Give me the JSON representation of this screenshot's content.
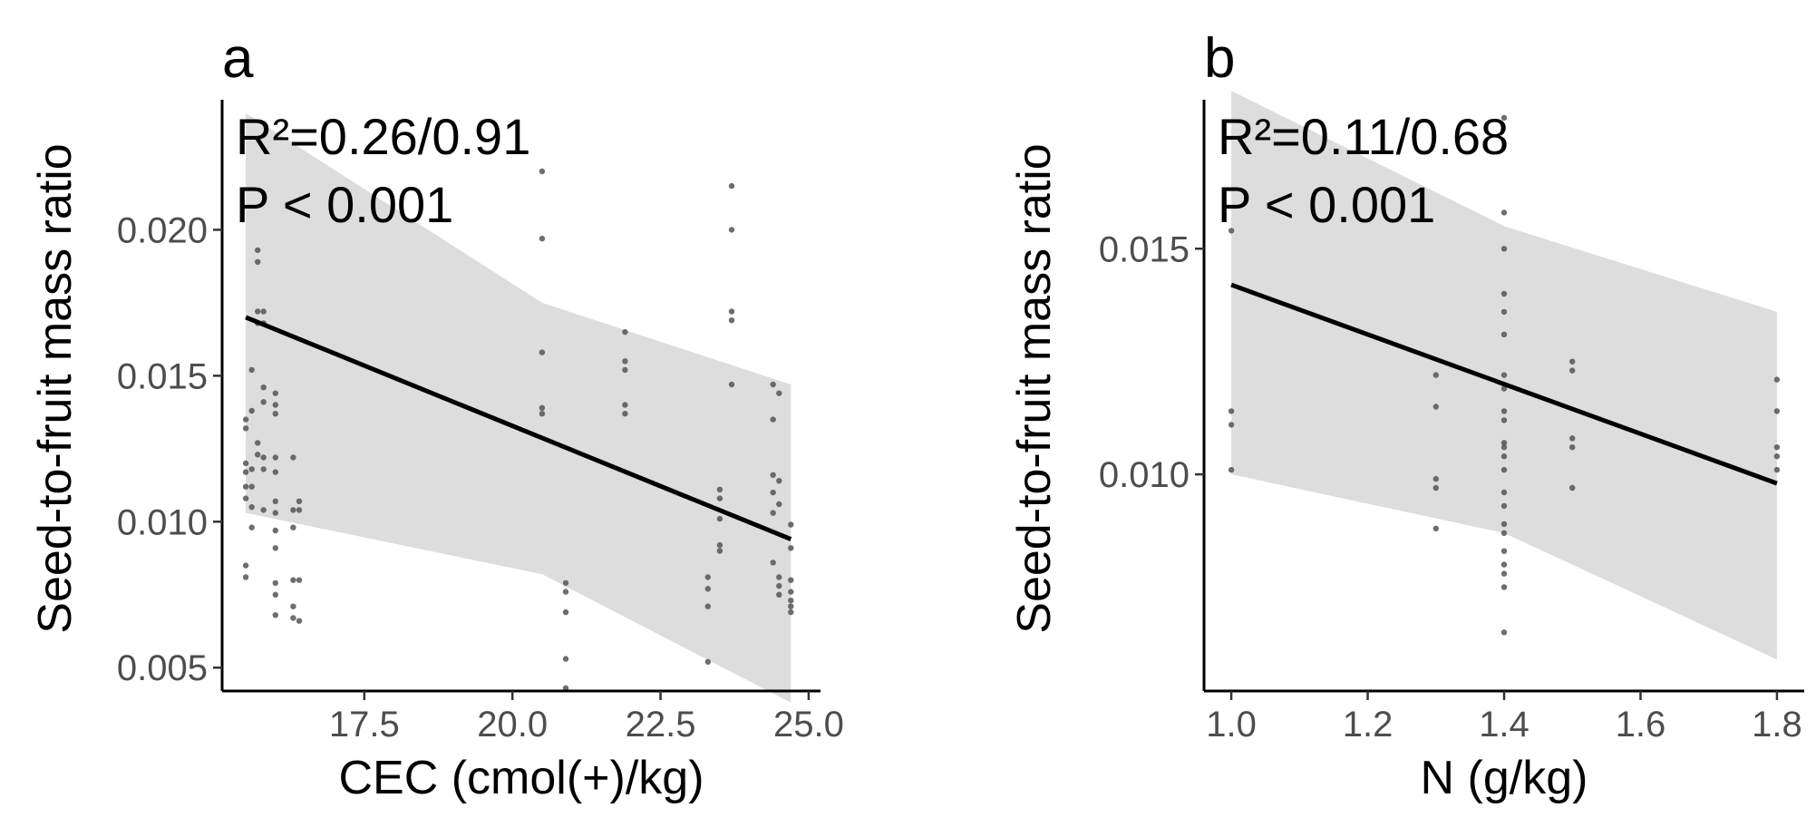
{
  "chart_data": [
    {
      "type": "scatter",
      "panel_label": "a",
      "xlabel": "CEC (cmol(+)/kg)",
      "ylabel": "Seed-to-fruit mass ratio",
      "xlim": [
        15.1,
        25.2
      ],
      "ylim": [
        0.0042,
        0.0243
      ],
      "xticks": [
        17.5,
        20.0,
        22.5,
        25.0
      ],
      "xtick_labels": [
        "17.5",
        "20.0",
        "22.5",
        "25.0"
      ],
      "yticks": [
        0.005,
        0.01,
        0.015,
        0.02
      ],
      "ytick_labels": [
        "0.005",
        "0.010",
        "0.015",
        "0.020"
      ],
      "annotations": {
        "r2": "R²=0.26/0.91",
        "p": "P < 0.001"
      },
      "fit": {
        "x": [
          15.5,
          24.7
        ],
        "y": [
          0.017,
          0.0094
        ]
      },
      "ci": {
        "x": [
          15.5,
          20.5,
          24.7
        ],
        "upper": [
          0.024,
          0.0175,
          0.0147
        ],
        "lower": [
          0.0103,
          0.0082,
          0.0038
        ]
      },
      "points": {
        "x": [
          15.5,
          15.5,
          15.5,
          15.5,
          15.5,
          15.5,
          15.5,
          15.5,
          15.6,
          15.6,
          15.6,
          15.6,
          15.6,
          15.6,
          15.7,
          15.7,
          15.7,
          15.7,
          15.7,
          15.7,
          15.8,
          15.8,
          15.8,
          15.8,
          15.8,
          15.8,
          15.8,
          16.0,
          16.0,
          16.0,
          16.0,
          16.0,
          16.0,
          16.0,
          16.0,
          16.0,
          16.0,
          16.0,
          16.0,
          16.3,
          16.3,
          16.3,
          16.3,
          16.3,
          16.3,
          16.4,
          16.4,
          16.4,
          16.4,
          20.5,
          20.5,
          20.5,
          20.5,
          20.5,
          20.9,
          20.9,
          20.9,
          20.9,
          20.9,
          21.9,
          21.9,
          21.9,
          21.9,
          21.9,
          23.3,
          23.3,
          23.3,
          23.3,
          23.5,
          23.5,
          23.5,
          23.5,
          23.5,
          23.7,
          23.7,
          23.7,
          23.7,
          23.7,
          24.4,
          24.4,
          24.4,
          24.4,
          24.4,
          24.4,
          24.5,
          24.5,
          24.5,
          24.5,
          24.5,
          24.5,
          24.7,
          24.7,
          24.7,
          24.7,
          24.7,
          24.7,
          24.7
        ],
        "y": [
          0.0135,
          0.0132,
          0.012,
          0.0117,
          0.0112,
          0.0108,
          0.0085,
          0.0081,
          0.0152,
          0.0138,
          0.0118,
          0.0112,
          0.0105,
          0.0098,
          0.0193,
          0.0189,
          0.0172,
          0.0168,
          0.0127,
          0.0123,
          0.0172,
          0.0168,
          0.0146,
          0.0141,
          0.0122,
          0.0118,
          0.0104,
          0.0144,
          0.014,
          0.0137,
          0.0122,
          0.0117,
          0.0107,
          0.0103,
          0.0097,
          0.0091,
          0.0079,
          0.0075,
          0.0068,
          0.0122,
          0.0104,
          0.0098,
          0.008,
          0.0071,
          0.0067,
          0.0107,
          0.0104,
          0.008,
          0.0066,
          0.022,
          0.0197,
          0.0158,
          0.0139,
          0.0137,
          0.0079,
          0.0076,
          0.0069,
          0.0053,
          0.0043,
          0.0165,
          0.0155,
          0.0152,
          0.014,
          0.0137,
          0.0081,
          0.0077,
          0.0071,
          0.0052,
          0.0111,
          0.0108,
          0.0101,
          0.0092,
          0.009,
          0.0215,
          0.02,
          0.0172,
          0.0169,
          0.0147,
          0.0147,
          0.0135,
          0.0116,
          0.011,
          0.0103,
          0.0086,
          0.0144,
          0.0114,
          0.0106,
          0.0081,
          0.0078,
          0.0075,
          0.0099,
          0.0091,
          0.008,
          0.0076,
          0.0073,
          0.0071,
          0.0069
        ]
      }
    },
    {
      "type": "scatter",
      "panel_label": "b",
      "xlabel": "N (g/kg)",
      "ylabel": "Seed-to-fruit mass ratio",
      "xlim": [
        0.96,
        1.84
      ],
      "ylim": [
        0.0052,
        0.0182
      ],
      "xticks": [
        1.0,
        1.2,
        1.4,
        1.6,
        1.8
      ],
      "xtick_labels": [
        "1.0",
        "1.2",
        "1.4",
        "1.6",
        "1.8"
      ],
      "yticks": [
        0.01,
        0.015
      ],
      "ytick_labels": [
        "0.010",
        "0.015"
      ],
      "annotations": {
        "r2": "R²=0.11/0.68",
        "p": "P < 0.001"
      },
      "fit": {
        "x": [
          1.0,
          1.8
        ],
        "y": [
          0.0142,
          0.0098
        ]
      },
      "ci": {
        "x": [
          1.0,
          1.4,
          1.8
        ],
        "upper": [
          0.0185,
          0.0155,
          0.0136
        ],
        "lower": [
          0.01,
          0.0087,
          0.0059
        ]
      },
      "points": {
        "x": [
          1.0,
          1.0,
          1.0,
          1.0,
          1.3,
          1.3,
          1.3,
          1.3,
          1.3,
          1.4,
          1.4,
          1.4,
          1.4,
          1.4,
          1.4,
          1.4,
          1.4,
          1.4,
          1.4,
          1.4,
          1.4,
          1.4,
          1.4,
          1.4,
          1.4,
          1.4,
          1.4,
          1.4,
          1.4,
          1.4,
          1.4,
          1.4,
          1.5,
          1.5,
          1.5,
          1.5,
          1.5,
          1.8,
          1.8,
          1.8,
          1.8,
          1.8
        ],
        "y": [
          0.0154,
          0.0114,
          0.0111,
          0.0101,
          0.0122,
          0.0115,
          0.0099,
          0.0097,
          0.0088,
          0.0179,
          0.0158,
          0.015,
          0.014,
          0.0136,
          0.0131,
          0.0122,
          0.0119,
          0.0114,
          0.0112,
          0.0107,
          0.0106,
          0.0104,
          0.0101,
          0.0096,
          0.0093,
          0.0089,
          0.0087,
          0.0083,
          0.008,
          0.0078,
          0.0075,
          0.0065,
          0.0125,
          0.0123,
          0.0108,
          0.0106,
          0.0097,
          0.0121,
          0.0114,
          0.0106,
          0.0104,
          0.0101
        ]
      }
    }
  ]
}
